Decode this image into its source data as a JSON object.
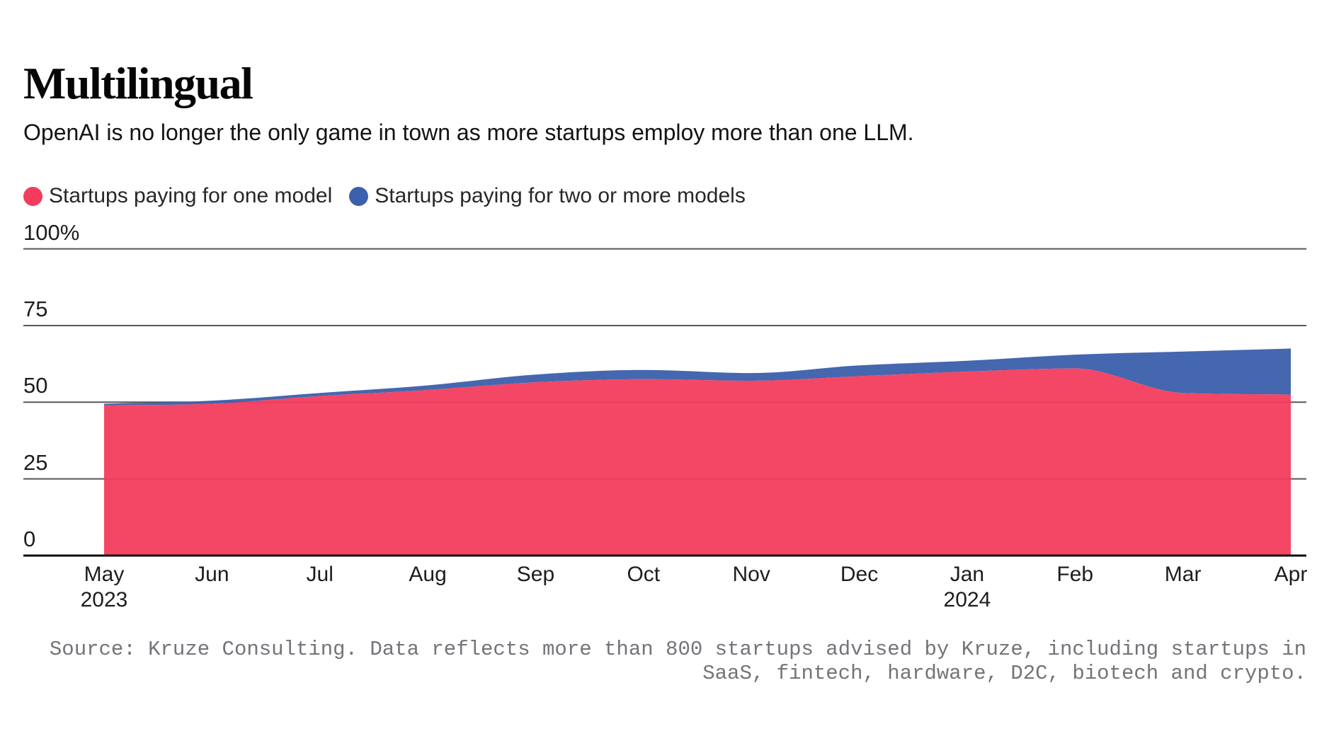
{
  "header": {
    "title": "Multilingual",
    "subtitle": "OpenAI is no longer the only game in town as more startups employ more than one LLM."
  },
  "legend": {
    "items": [
      {
        "label": "Startups paying for one model"
      },
      {
        "label": "Startups paying for two or more models"
      }
    ]
  },
  "source": {
    "line1": "Source: Kruze Consulting. Data reflects more than 800 startups advised by Kruze, including startups in",
    "line2": "SaaS, fintech, hardware, D2C, biotech and crypto."
  },
  "chart_data": {
    "type": "area",
    "stacked": true,
    "categories": [
      "May",
      "Jun",
      "Jul",
      "Aug",
      "Sep",
      "Oct",
      "Nov",
      "Dec",
      "Jan",
      "Feb",
      "Mar",
      "Apr"
    ],
    "year_labels": [
      {
        "index": 0,
        "text": "2023"
      },
      {
        "index": 8,
        "text": "2024"
      }
    ],
    "series": [
      {
        "name": "Startups paying for one model",
        "color": "#F33C5B",
        "values": [
          49,
          49.5,
          52,
          54,
          56.5,
          57.5,
          57,
          58.5,
          60,
          61,
          53,
          52.5
        ]
      },
      {
        "name": "Startups paying for two or more models",
        "color": "#3C61AC",
        "values": [
          0.5,
          1,
          1,
          1.5,
          2.5,
          3,
          2.5,
          3.5,
          3.5,
          4.5,
          13.5,
          15
        ]
      }
    ],
    "stacked_totals": [
      49.5,
      50.5,
      53,
      55.5,
      59,
      60.5,
      59.5,
      62,
      63.5,
      65.5,
      66.5,
      67.5
    ],
    "title": "Multilingual",
    "xlabel": "",
    "ylabel": "",
    "yticks": [
      {
        "value": 100,
        "label": "100%"
      },
      {
        "value": 75,
        "label": "75"
      },
      {
        "value": 50,
        "label": "50"
      },
      {
        "value": 25,
        "label": "25"
      },
      {
        "value": 0,
        "label": "0"
      }
    ],
    "ylim": [
      0,
      100
    ],
    "grid": true,
    "legend_position": "top",
    "colors": {
      "grid_line": "#56565b",
      "axis_line": "#0b0b0c",
      "tick_text": "#1d1d21",
      "source_text": "#737379"
    }
  }
}
